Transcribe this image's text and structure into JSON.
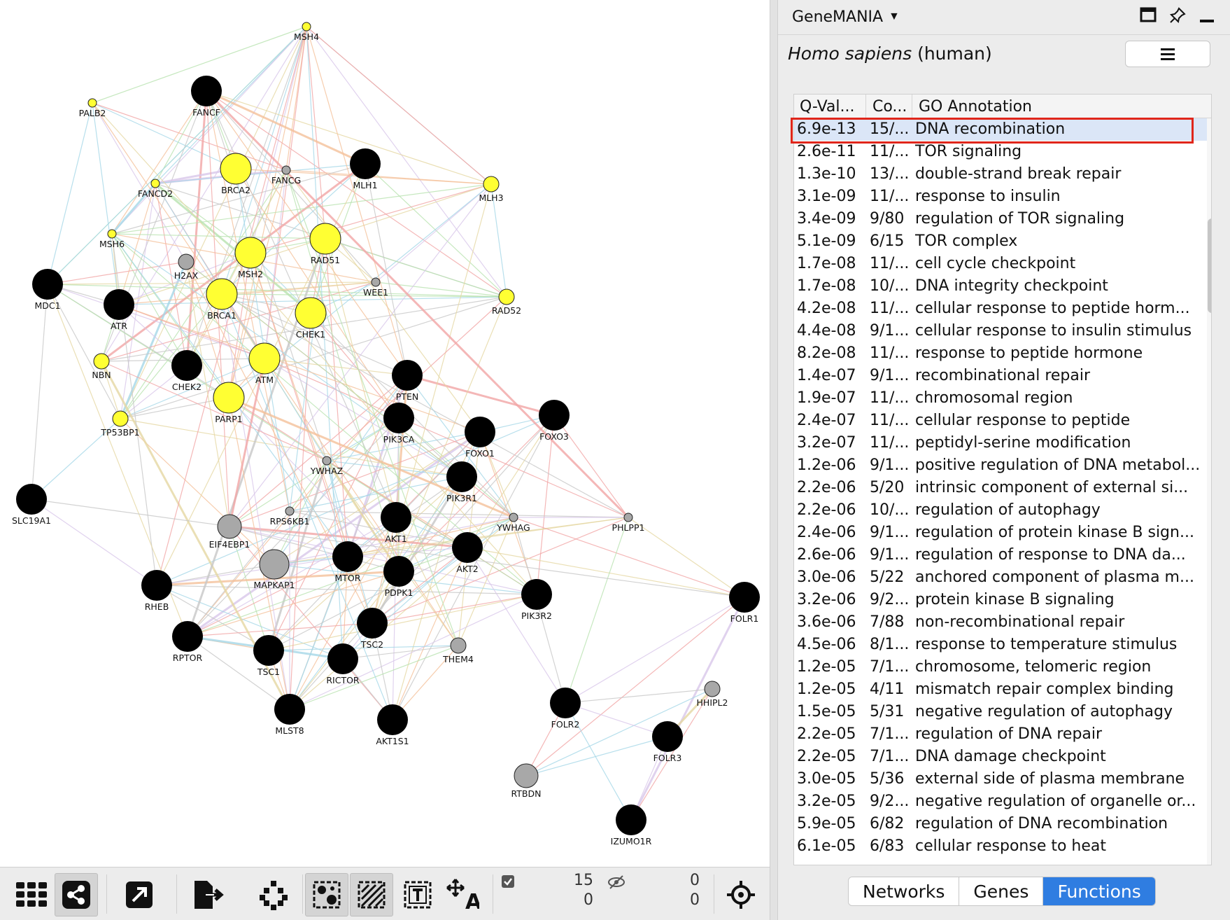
{
  "canvas": {
    "nodes": [
      {
        "id": "MSH4",
        "color": "yellow",
        "size": "xs"
      },
      {
        "id": "PALB2",
        "color": "yellow",
        "size": "xs"
      },
      {
        "id": "FANCF",
        "color": "black",
        "size": "lg"
      },
      {
        "id": "FANCD2",
        "color": "yellow",
        "size": "xs"
      },
      {
        "id": "BRCA2",
        "color": "yellow",
        "size": "lg"
      },
      {
        "id": "FANCG",
        "color": "gray",
        "size": "xs"
      },
      {
        "id": "MLH1",
        "color": "black",
        "size": "lg"
      },
      {
        "id": "MLH3",
        "color": "yellow",
        "size": "sm"
      },
      {
        "id": "MSH6",
        "color": "yellow",
        "size": "xs"
      },
      {
        "id": "H2AX",
        "color": "gray",
        "size": "sm"
      },
      {
        "id": "MSH2",
        "color": "yellow",
        "size": "lg"
      },
      {
        "id": "RAD51",
        "color": "yellow",
        "size": "lg"
      },
      {
        "id": "WEE1",
        "color": "gray",
        "size": "xs"
      },
      {
        "id": "RAD52",
        "color": "yellow",
        "size": "sm"
      },
      {
        "id": "MDC1",
        "color": "black",
        "size": "lg"
      },
      {
        "id": "ATR",
        "color": "black",
        "size": "lg"
      },
      {
        "id": "BRCA1",
        "color": "yellow",
        "size": "lg"
      },
      {
        "id": "CHEK1",
        "color": "yellow",
        "size": "lg"
      },
      {
        "id": "NBN",
        "color": "yellow",
        "size": "sm"
      },
      {
        "id": "CHEK2",
        "color": "black",
        "size": "lg"
      },
      {
        "id": "ATM",
        "color": "yellow",
        "size": "lg"
      },
      {
        "id": "PTEN",
        "color": "black",
        "size": "lg"
      },
      {
        "id": "PARP1",
        "color": "yellow",
        "size": "lg"
      },
      {
        "id": "TP53BP1",
        "color": "yellow",
        "size": "sm"
      },
      {
        "id": "PIK3CA",
        "color": "black",
        "size": "lg"
      },
      {
        "id": "FOXO1",
        "color": "black",
        "size": "lg"
      },
      {
        "id": "FOXO3",
        "color": "black",
        "size": "lg"
      },
      {
        "id": "YWHAZ",
        "color": "gray",
        "size": "xs"
      },
      {
        "id": "PIK3R1",
        "color": "black",
        "size": "lg"
      },
      {
        "id": "SLC19A1",
        "color": "black",
        "size": "lg"
      },
      {
        "id": "RPS6KB1",
        "color": "gray",
        "size": "xs"
      },
      {
        "id": "EIF4EBP1",
        "color": "gray",
        "size": "md"
      },
      {
        "id": "AKT1",
        "color": "black",
        "size": "lg"
      },
      {
        "id": "YWHAG",
        "color": "gray",
        "size": "xs"
      },
      {
        "id": "PHLPP1",
        "color": "gray",
        "size": "xs"
      },
      {
        "id": "MAPKAP1",
        "color": "gray",
        "size": "lg"
      },
      {
        "id": "MTOR",
        "color": "black",
        "size": "lg"
      },
      {
        "id": "PDPK1",
        "color": "black",
        "size": "lg"
      },
      {
        "id": "AKT2",
        "color": "black",
        "size": "lg"
      },
      {
        "id": "RHEB",
        "color": "black",
        "size": "lg"
      },
      {
        "id": "PIK3R2",
        "color": "black",
        "size": "lg"
      },
      {
        "id": "FOLR1",
        "color": "black",
        "size": "lg"
      },
      {
        "id": "RPTOR",
        "color": "black",
        "size": "lg"
      },
      {
        "id": "TSC2",
        "color": "black",
        "size": "lg"
      },
      {
        "id": "TSC1",
        "color": "black",
        "size": "lg"
      },
      {
        "id": "RICTOR",
        "color": "black",
        "size": "lg"
      },
      {
        "id": "THEM4",
        "color": "gray",
        "size": "sm"
      },
      {
        "id": "HHIPL2",
        "color": "gray",
        "size": "sm"
      },
      {
        "id": "FOLR2",
        "color": "black",
        "size": "lg"
      },
      {
        "id": "MLST8",
        "color": "black",
        "size": "lg"
      },
      {
        "id": "AKT1S1",
        "color": "black",
        "size": "lg"
      },
      {
        "id": "FOLR3",
        "color": "black",
        "size": "lg"
      },
      {
        "id": "RTBDN",
        "color": "gray",
        "size": "md"
      },
      {
        "id": "IZUMO1R",
        "color": "black",
        "size": "lg"
      }
    ],
    "colors": {
      "yellow": "#ffff33",
      "black": "#000000",
      "gray": "#a8a8a8"
    }
  },
  "toolbar": {
    "buttons": [
      "grid-icon",
      "share-network-icon",
      "open-external-icon",
      "export-icon",
      "layout-icon",
      "select-nodes-icon",
      "select-edges-icon",
      "text-box-icon",
      "move-text-icon",
      "checkbox-icon",
      "hidden-eye-icon",
      "fit-view-icon"
    ],
    "selected_nodes": "15",
    "selected_edges": "0",
    "hidden_nodes": "0",
    "hidden_edges": "0"
  },
  "panel": {
    "app_title": "GeneMANIA",
    "organism_italic": "Homo sapiens",
    "organism_common": "(human)",
    "columns": [
      "Q-Val...",
      "Co...",
      "GO Annotation"
    ],
    "rows": [
      [
        "6.9e-13",
        "15/...",
        "DNA recombination"
      ],
      [
        "2.6e-11",
        "11/...",
        "TOR signaling"
      ],
      [
        "1.3e-10",
        "13/...",
        "double-strand break repair"
      ],
      [
        "3.1e-09",
        "11/...",
        "response to insulin"
      ],
      [
        "3.4e-09",
        "9/80",
        "regulation of TOR signaling"
      ],
      [
        "5.1e-09",
        "6/15",
        "TOR complex"
      ],
      [
        "1.7e-08",
        "11/...",
        "cell cycle checkpoint"
      ],
      [
        "1.7e-08",
        "10/...",
        "DNA integrity checkpoint"
      ],
      [
        "4.2e-08",
        "11/...",
        "cellular response to peptide horm..."
      ],
      [
        "4.4e-08",
        "9/1...",
        "cellular response to insulin stimulus"
      ],
      [
        "8.2e-08",
        "11/...",
        "response to peptide hormone"
      ],
      [
        "1.4e-07",
        "9/1...",
        "recombinational repair"
      ],
      [
        "1.9e-07",
        "11/...",
        "chromosomal region"
      ],
      [
        "2.4e-07",
        "11/...",
        "cellular response to peptide"
      ],
      [
        "3.2e-07",
        "11/...",
        "peptidyl-serine modification"
      ],
      [
        "1.2e-06",
        "9/1...",
        "positive regulation of DNA metabol..."
      ],
      [
        "2.2e-06",
        "5/20",
        "intrinsic component of external si..."
      ],
      [
        "2.2e-06",
        "10/...",
        "regulation of autophagy"
      ],
      [
        "2.4e-06",
        "9/1...",
        "regulation of protein kinase B sign..."
      ],
      [
        "2.6e-06",
        "9/1...",
        "regulation of response to DNA da..."
      ],
      [
        "3.0e-06",
        "5/22",
        "anchored component of plasma m..."
      ],
      [
        "3.2e-06",
        "9/2...",
        "protein kinase B signaling"
      ],
      [
        "3.6e-06",
        "7/88",
        "non-recombinational repair"
      ],
      [
        "4.5e-06",
        "8/1...",
        "response to temperature stimulus"
      ],
      [
        "1.2e-05",
        "7/1...",
        "chromosome, telomeric region"
      ],
      [
        "1.2e-05",
        "4/11",
        "mismatch repair complex binding"
      ],
      [
        "1.5e-05",
        "5/31",
        "negative regulation of autophagy"
      ],
      [
        "2.2e-05",
        "7/1...",
        "regulation of DNA repair"
      ],
      [
        "2.2e-05",
        "7/1...",
        "DNA damage checkpoint"
      ],
      [
        "3.0e-05",
        "5/36",
        "external side of plasma membrane"
      ],
      [
        "3.2e-05",
        "9/2...",
        "negative regulation of organelle or..."
      ],
      [
        "5.9e-05",
        "6/82",
        "regulation of DNA recombination"
      ],
      [
        "6.1e-05",
        "6/83",
        "cellular response to heat"
      ]
    ],
    "selected_row": 0,
    "tabs": [
      "Networks",
      "Genes",
      "Functions"
    ],
    "active_tab": "Functions",
    "highlight_color": "#e0261b",
    "accent_color": "#2f7de1"
  }
}
